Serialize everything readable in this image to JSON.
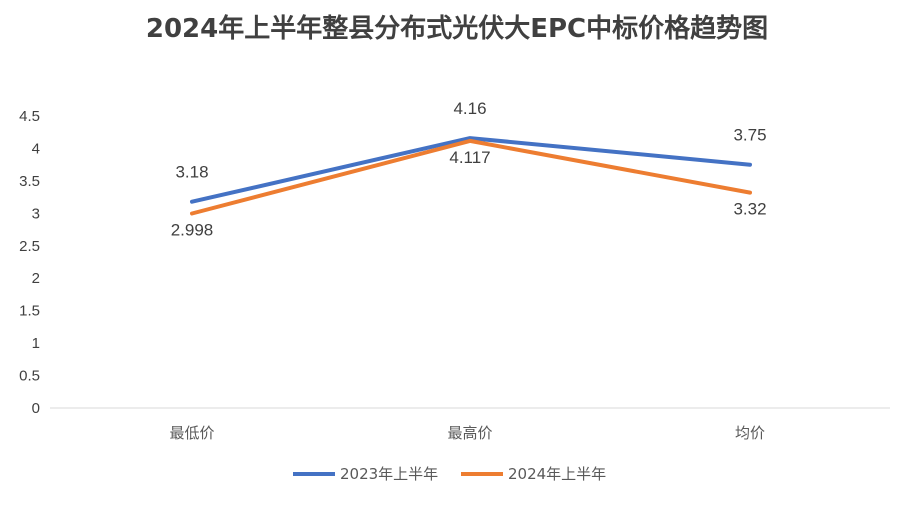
{
  "chart_data": {
    "type": "line",
    "title": "2024年上半年整县分布式光伏大EPC中标价格趋势图",
    "categories": [
      "最低价",
      "最高价",
      "均价"
    ],
    "series": [
      {
        "name": "2023年上半年",
        "values": [
          3.18,
          4.16,
          3.75
        ],
        "labels": [
          "3.18",
          "4.16",
          "3.75"
        ],
        "color": "#4472C4"
      },
      {
        "name": "2024年上半年",
        "values": [
          2.998,
          4.117,
          3.32
        ],
        "labels": [
          "2.998",
          "4.117",
          "3.32"
        ],
        "color": "#ED7D31"
      }
    ],
    "yticks": [
      "0",
      "0.5",
      "1",
      "1.5",
      "2",
      "2.5",
      "3",
      "3.5",
      "4",
      "4.5"
    ],
    "ylim": [
      0,
      4.5
    ],
    "grid": false,
    "legend_position": "bottom"
  }
}
